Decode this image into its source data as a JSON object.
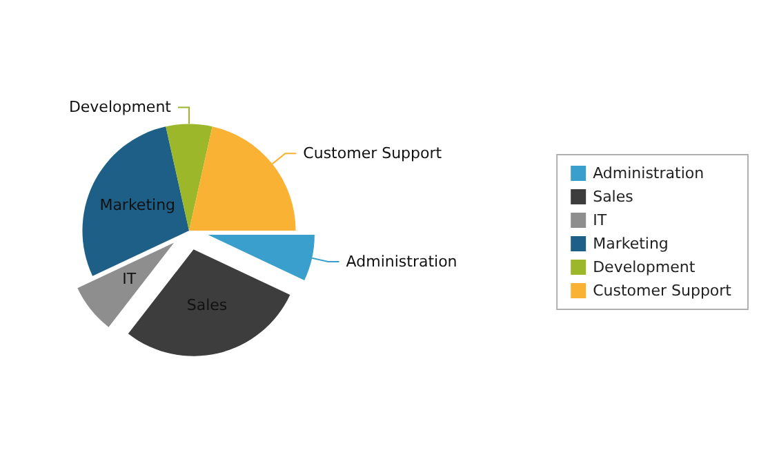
{
  "chart_data": {
    "type": "pie",
    "categories": [
      "Administration",
      "Sales",
      "IT",
      "Marketing",
      "Development",
      "Customer Support"
    ],
    "values": [
      7,
      28.5,
      7.5,
      28.5,
      7,
      21.5
    ],
    "colors": [
      "#3a9fcc",
      "#3d3d3d",
      "#8e8e8e",
      "#1d5f86",
      "#9cb82a",
      "#f9b233"
    ],
    "legend": "right"
  }
}
